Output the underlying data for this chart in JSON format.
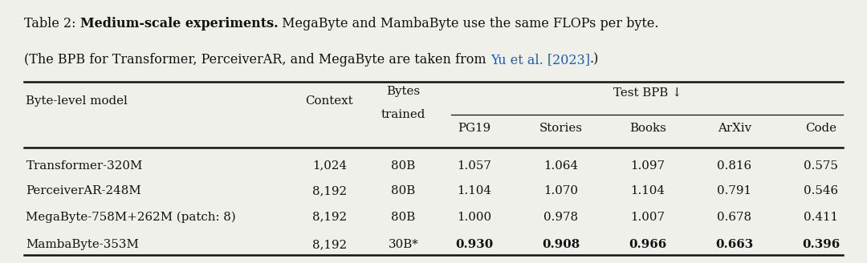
{
  "bg_color": "#f0f0eb",
  "text_color": "#111111",
  "link_color": "#1a5eb8",
  "figsize": [
    10.8,
    3.28
  ],
  "dpi": 100,
  "caption": {
    "prefix": "Table 2: ",
    "bold": "Medium-scale experiments.",
    "suffix": " MegaByte and MambaByte use the same FLOPs per byte.",
    "line2_pre": "(The BPB for Transformer, PerceiverAR, and MegaByte are taken from ",
    "line2_link": "Yu et al. [2023]",
    "line2_post": ".)"
  },
  "col_positions": {
    "model": 0.03,
    "context": 0.355,
    "bytes": 0.445,
    "pg19": 0.53,
    "stories": 0.63,
    "books": 0.73,
    "arxiv": 0.83,
    "code": 0.93
  },
  "header": {
    "model": "Byte-level model",
    "context": "Context",
    "bytes_l1": "Bytes",
    "bytes_l2": "trained",
    "group": "Test BPB ↓",
    "sub": [
      "PG19",
      "Stories",
      "Books",
      "ArXiv",
      "Code"
    ]
  },
  "rows": [
    [
      "Transformer-320M",
      "1,024",
      "80B",
      "1.057",
      "1.064",
      "1.097",
      "0.816",
      "0.575",
      false
    ],
    [
      "PerceiverAR-248M",
      "8,192",
      "80B",
      "1.104",
      "1.070",
      "1.104",
      "0.791",
      "0.546",
      false
    ],
    [
      "MegaByte-758M+262M (patch: 8)",
      "8,192",
      "80B",
      "1.000",
      "0.978",
      "1.007",
      "0.678",
      "0.411",
      false
    ],
    [
      "MambaByte-353M",
      "8,192",
      "30B*",
      "0.930",
      "0.908",
      "0.966",
      "0.663",
      "0.396",
      true
    ]
  ],
  "fs_caption": 11.5,
  "fs_header": 10.8,
  "fs_data": 10.8
}
